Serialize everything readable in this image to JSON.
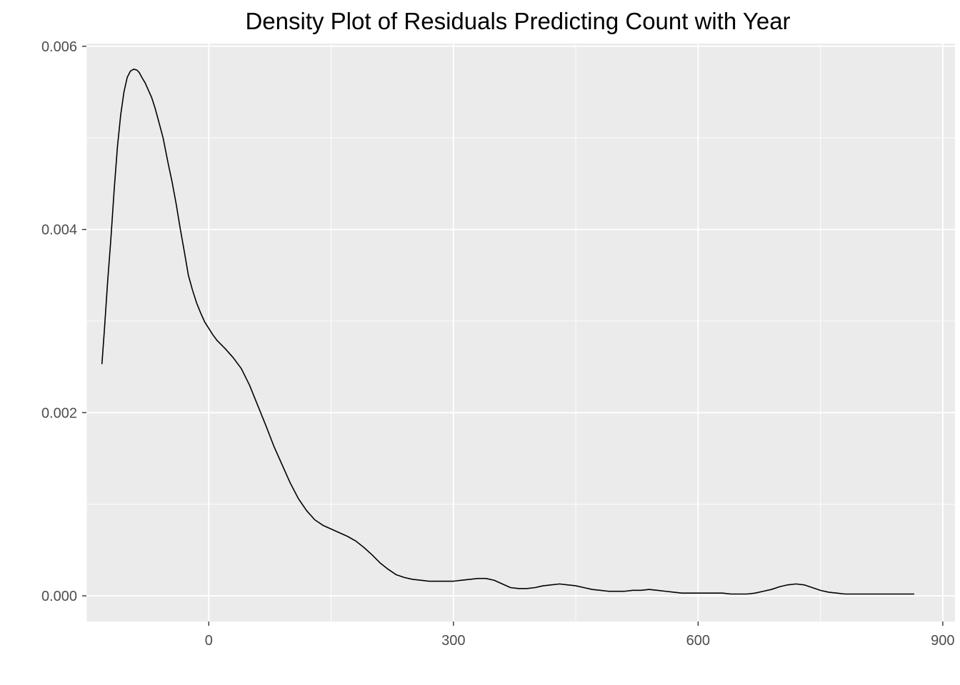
{
  "chart_data": {
    "type": "line",
    "title": "Density Plot of Residuals Predicting Count with Year",
    "xlabel": "",
    "ylabel": "",
    "xlim": [
      -150,
      915
    ],
    "ylim": [
      -0.00028,
      0.00603
    ],
    "x_ticks": [
      0,
      300,
      600,
      900
    ],
    "x_tick_labels": [
      "0",
      "300",
      "600",
      "900"
    ],
    "y_ticks": [
      0.0,
      0.002,
      0.004,
      0.006
    ],
    "y_tick_labels": [
      "0.000",
      "0.002",
      "0.004",
      "0.006"
    ],
    "grid": true,
    "legend": "none",
    "colors": {
      "panel": "#ebebeb",
      "grid": "#ffffff",
      "line": "#000000"
    },
    "series": [
      {
        "x": [
          -131,
          -128,
          -124,
          -120,
          -116,
          -112,
          -108,
          -104,
          -100,
          -96,
          -92,
          -88,
          -85,
          -82,
          -78,
          -74,
          -70,
          -66,
          -62,
          -56,
          -50,
          -45,
          -40,
          -35,
          -30,
          -25,
          -20,
          -15,
          -10,
          -5,
          0,
          5,
          10,
          20,
          30,
          40,
          50,
          60,
          70,
          80,
          90,
          100,
          110,
          120,
          130,
          140,
          150,
          160,
          170,
          180,
          190,
          200,
          210,
          220,
          230,
          240,
          250,
          260,
          270,
          280,
          290,
          300,
          310,
          320,
          330,
          340,
          350,
          360,
          370,
          380,
          390,
          400,
          410,
          420,
          430,
          440,
          450,
          460,
          470,
          480,
          490,
          500,
          510,
          520,
          530,
          540,
          550,
          560,
          570,
          580,
          590,
          600,
          610,
          620,
          630,
          640,
          650,
          660,
          670,
          680,
          690,
          700,
          710,
          720,
          730,
          740,
          750,
          760,
          770,
          780,
          790,
          800,
          810,
          820,
          830,
          840,
          850,
          860,
          865
        ],
        "y": [
          0.00253,
          0.0029,
          0.00343,
          0.0039,
          0.00443,
          0.0049,
          0.00525,
          0.0055,
          0.00566,
          0.00573,
          0.00575,
          0.00574,
          0.00571,
          0.00566,
          0.0056,
          0.00552,
          0.00544,
          0.00533,
          0.0052,
          0.005,
          0.00473,
          0.00452,
          0.00428,
          0.00401,
          0.00376,
          0.0035,
          0.00334,
          0.0032,
          0.00309,
          0.00299,
          0.00292,
          0.00285,
          0.00279,
          0.0027,
          0.0026,
          0.00248,
          0.0023,
          0.00208,
          0.00186,
          0.00163,
          0.00143,
          0.00123,
          0.00106,
          0.00093,
          0.00083,
          0.00077,
          0.00073,
          0.00069,
          0.00065,
          0.0006,
          0.00053,
          0.00045,
          0.00036,
          0.00029,
          0.00023,
          0.0002,
          0.00018,
          0.00017,
          0.00016,
          0.00016,
          0.00016,
          0.00016,
          0.00017,
          0.00018,
          0.00019,
          0.00019,
          0.00017,
          0.00013,
          9e-05,
          8e-05,
          8e-05,
          9e-05,
          0.00011,
          0.00012,
          0.00013,
          0.00012,
          0.00011,
          9e-05,
          7e-05,
          6e-05,
          5e-05,
          5e-05,
          5e-05,
          6e-05,
          6e-05,
          7e-05,
          6e-05,
          5e-05,
          4e-05,
          3e-05,
          3e-05,
          3e-05,
          3e-05,
          3e-05,
          3e-05,
          2e-05,
          2e-05,
          2e-05,
          3e-05,
          5e-05,
          7e-05,
          0.0001,
          0.00012,
          0.00013,
          0.00012,
          9e-05,
          6e-05,
          4e-05,
          3e-05,
          2e-05,
          2e-05,
          2e-05,
          2e-05,
          2e-05,
          2e-05,
          2e-05,
          2e-05,
          2e-05,
          2e-05
        ]
      }
    ]
  }
}
